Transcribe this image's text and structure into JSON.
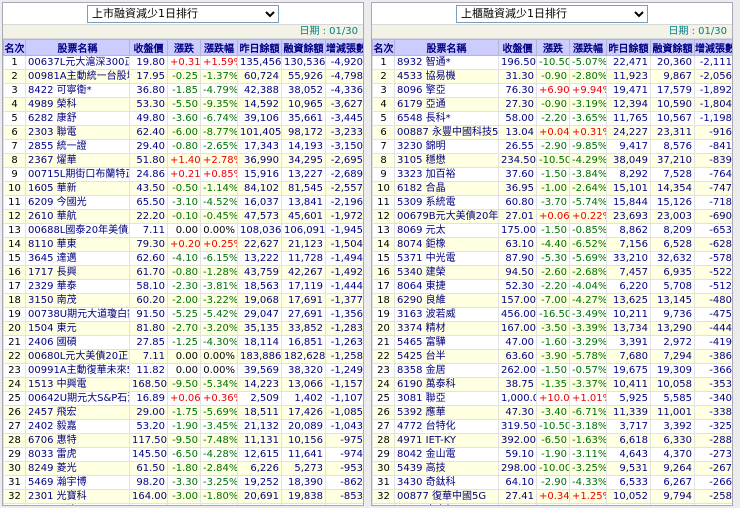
{
  "date_label": "日期 : 01/30",
  "colors": {
    "up": "#ee0000",
    "down": "#007000",
    "header_bg": "#ccccff",
    "header_fg": "#000080",
    "name": "#000080",
    "num": "#000080",
    "date": "#008080"
  },
  "tables": [
    {
      "title": "上市融資減少1日排行",
      "headers": [
        "名次",
        "股票名稱",
        "收盤價",
        "漲跌",
        "漲跌幅",
        "昨日餘額",
        "融資餘額",
        "增減張數"
      ],
      "rows": [
        [
          "1",
          "00637L元大滬深300正2",
          "19.80",
          "+0.31",
          "+1.59%",
          "135,456",
          "130,536",
          "-4,920"
        ],
        [
          "2",
          "00981A主動統一台股增長",
          "17.95",
          "-0.25",
          "-1.37%",
          "60,724",
          "55,926",
          "-4,798"
        ],
        [
          "3",
          "8422 可寧衛*",
          "36.80",
          "-1.85",
          "-4.79%",
          "42,388",
          "38,052",
          "-4,336"
        ],
        [
          "4",
          "4989 榮科",
          "53.30",
          "-5.50",
          "-9.35%",
          "14,592",
          "10,965",
          "-3,627"
        ],
        [
          "5",
          "6282 康舒",
          "49.80",
          "-3.60",
          "-6.74%",
          "39,106",
          "35,661",
          "-3,445"
        ],
        [
          "6",
          "2303 聯電",
          "62.40",
          "-6.00",
          "-8.77%",
          "101,405",
          "98,172",
          "-3,233"
        ],
        [
          "7",
          "2855 統一證",
          "29.40",
          "-0.80",
          "-2.65%",
          "17,343",
          "14,193",
          "-3,150"
        ],
        [
          "8",
          "2367 燿華",
          "51.80",
          "+1.40",
          "+2.78%",
          "36,990",
          "34,295",
          "-2,695"
        ],
        [
          "9",
          "00715L期街口布蘭特正2",
          "24.86",
          "+0.21",
          "+0.85%",
          "15,916",
          "13,227",
          "-2,689"
        ],
        [
          "10",
          "1605 華新",
          "43.50",
          "-0.50",
          "-1.14%",
          "84,102",
          "81,545",
          "-2,557"
        ],
        [
          "11",
          "6209 今國光",
          "65.50",
          "-3.10",
          "-4.52%",
          "16,037",
          "13,841",
          "-2,196"
        ],
        [
          "12",
          "2610 華航",
          "22.20",
          "-0.10",
          "-0.45%",
          "47,573",
          "45,601",
          "-1,972"
        ],
        [
          "13",
          "00688L國泰20年美債正2",
          "7.11",
          "0.00",
          "0.00%",
          "108,036",
          "106,091",
          "-1,945"
        ],
        [
          "14",
          "8110 華東",
          "79.30",
          "+0.20",
          "+0.25%",
          "22,627",
          "21,123",
          "-1,504"
        ],
        [
          "15",
          "3645 達邁",
          "62.60",
          "-4.10",
          "-6.15%",
          "13,222",
          "11,728",
          "-1,494"
        ],
        [
          "16",
          "1717 長興",
          "61.70",
          "-0.80",
          "-1.28%",
          "43,759",
          "42,267",
          "-1,492"
        ],
        [
          "17",
          "2329 華泰",
          "58.10",
          "-2.30",
          "-3.81%",
          "18,563",
          "17,119",
          "-1,444"
        ],
        [
          "18",
          "3150 南茂",
          "60.20",
          "-2.00",
          "-3.22%",
          "19,068",
          "17,691",
          "-1,377"
        ],
        [
          "19",
          "00738U期元大道瓊白銀",
          "91.50",
          "-5.25",
          "-5.42%",
          "29,047",
          "27,691",
          "-1,356"
        ],
        [
          "20",
          "1504 東元",
          "81.80",
          "-2.70",
          "-3.20%",
          "35,135",
          "33,852",
          "-1,283"
        ],
        [
          "21",
          "2406 國碩",
          "27.85",
          "-1.25",
          "-4.30%",
          "18,114",
          "16,851",
          "-1,263"
        ],
        [
          "22",
          "00680L元大美債20正2",
          "7.11",
          "0.00",
          "0.00%",
          "183,886",
          "182,628",
          "-1,258"
        ],
        [
          "23",
          "00991A主動復華未來50",
          "11.82",
          "0.00",
          "0.00%",
          "39,569",
          "38,320",
          "-1,249"
        ],
        [
          "24",
          "1513 中興電",
          "168.50",
          "-9.50",
          "-5.34%",
          "14,223",
          "13,066",
          "-1,157"
        ],
        [
          "25",
          "00642U期元大S&P石油",
          "16.89",
          "+0.06",
          "+0.36%",
          "2,509",
          "1,402",
          "-1,107"
        ],
        [
          "26",
          "2457 飛宏",
          "29.00",
          "-1.75",
          "-5.69%",
          "18,511",
          "17,426",
          "-1,085"
        ],
        [
          "27",
          "2402 毅嘉",
          "53.20",
          "-1.90",
          "-3.45%",
          "21,132",
          "20,089",
          "-1,043"
        ],
        [
          "28",
          "6706 惠特",
          "117.50",
          "-9.50",
          "-7.48%",
          "11,131",
          "10,156",
          "-975"
        ],
        [
          "29",
          "8033 雷虎",
          "145.50",
          "-6.50",
          "-4.28%",
          "12,615",
          "11,641",
          "-974"
        ],
        [
          "30",
          "8249 菱光",
          "61.50",
          "-1.80",
          "-2.84%",
          "6,226",
          "5,273",
          "-953"
        ],
        [
          "31",
          "5469 瀚宇博",
          "98.20",
          "-3.30",
          "-3.25%",
          "19,252",
          "18,390",
          "-862"
        ],
        [
          "32",
          "2301 光寶科",
          "164.00",
          "-3.00",
          "-1.80%",
          "20,691",
          "19,838",
          "-853"
        ],
        [
          "33",
          "3149 正達",
          "52.40",
          "-2.50",
          "-4.55%",
          "25,808",
          "24,956",
          "-852"
        ]
      ]
    },
    {
      "title": "上櫃融資減少1日排行",
      "headers": [
        "名次",
        "股票名稱",
        "收盤價",
        "漲跌",
        "漲跌幅",
        "昨日餘額",
        "融資餘額",
        "增減張數"
      ],
      "rows": [
        [
          "1",
          "8932 智通*",
          "196.50",
          "-10.50",
          "-5.07%",
          "22,471",
          "20,360",
          "-2,111"
        ],
        [
          "2",
          "4533 協易機",
          "31.30",
          "-0.90",
          "-2.80%",
          "11,923",
          "9,867",
          "-2,056"
        ],
        [
          "3",
          "8096 擎亞",
          "76.30",
          "+6.90",
          "+9.94%",
          "19,471",
          "17,579",
          "-1,892"
        ],
        [
          "4",
          "6179 亞通",
          "27.30",
          "-0.90",
          "-3.19%",
          "12,394",
          "10,590",
          "-1,804"
        ],
        [
          "5",
          "6548 長科*",
          "58.00",
          "-2.20",
          "-3.65%",
          "11,765",
          "10,567",
          "-1,198"
        ],
        [
          "6",
          "00887 永豐中國科技50大",
          "13.04",
          "+0.04",
          "+0.31%",
          "24,227",
          "23,311",
          "-916"
        ],
        [
          "7",
          "3230 錦明",
          "26.55",
          "-2.90",
          "-9.85%",
          "9,417",
          "8,576",
          "-841"
        ],
        [
          "8",
          "3105 穩懋",
          "234.50",
          "-10.50",
          "-4.29%",
          "38,049",
          "37,210",
          "-839"
        ],
        [
          "9",
          "3323 加百裕",
          "37.60",
          "-1.50",
          "-3.84%",
          "8,292",
          "7,528",
          "-764"
        ],
        [
          "10",
          "6182 合晶",
          "36.95",
          "-1.00",
          "-2.64%",
          "15,101",
          "14,354",
          "-747"
        ],
        [
          "11",
          "5309 系統電",
          "60.80",
          "-3.70",
          "-5.74%",
          "15,844",
          "15,126",
          "-718"
        ],
        [
          "12",
          "00679B元大美債20年",
          "27.01",
          "+0.06",
          "+0.22%",
          "23,693",
          "23,003",
          "-690"
        ],
        [
          "13",
          "8069 元太",
          "175.00",
          "-1.50",
          "-0.85%",
          "8,862",
          "8,209",
          "-653"
        ],
        [
          "14",
          "8074 鉅橡",
          "63.10",
          "-4.40",
          "-6.52%",
          "7,156",
          "6,528",
          "-628"
        ],
        [
          "15",
          "5371 中光電",
          "87.90",
          "-5.30",
          "-5.69%",
          "33,210",
          "32,632",
          "-578"
        ],
        [
          "16",
          "5340 建榮",
          "94.50",
          "-2.60",
          "-2.68%",
          "7,457",
          "6,935",
          "-522"
        ],
        [
          "17",
          "8064 東捷",
          "52.30",
          "-2.20",
          "-4.04%",
          "6,220",
          "5,708",
          "-512"
        ],
        [
          "18",
          "6290 良維",
          "157.00",
          "-7.00",
          "-4.27%",
          "13,625",
          "13,145",
          "-480"
        ],
        [
          "19",
          "3163 波若威",
          "456.00",
          "-16.50",
          "-3.49%",
          "10,211",
          "9,736",
          "-475"
        ],
        [
          "20",
          "3374 精材",
          "167.00",
          "-3.50",
          "-3.39%",
          "13,734",
          "13,290",
          "-444"
        ],
        [
          "21",
          "5465 富驊",
          "47.00",
          "-1.60",
          "-3.29%",
          "3,391",
          "2,972",
          "-419"
        ],
        [
          "22",
          "5425 台半",
          "63.60",
          "-3.90",
          "-5.78%",
          "7,680",
          "7,294",
          "-386"
        ],
        [
          "23",
          "8358 金居",
          "262.00",
          "-1.50",
          "-0.57%",
          "19,675",
          "19,309",
          "-366"
        ],
        [
          "24",
          "6190 萬泰科",
          "38.75",
          "-1.35",
          "-3.37%",
          "10,411",
          "10,058",
          "-353"
        ],
        [
          "25",
          "3081 聯亞",
          "1,000.00",
          "+10.00",
          "+1.01%",
          "5,925",
          "5,585",
          "-340"
        ],
        [
          "26",
          "5392 應華",
          "47.30",
          "-3.40",
          "-6.71%",
          "11,339",
          "11,001",
          "-338"
        ],
        [
          "27",
          "4772 台特化",
          "319.50",
          "-10.50",
          "-3.18%",
          "3,717",
          "3,392",
          "-325"
        ],
        [
          "28",
          "4971 IET-KY",
          "392.00",
          "-6.50",
          "-1.63%",
          "6,618",
          "6,330",
          "-288"
        ],
        [
          "29",
          "8042 金山電",
          "59.10",
          "-1.90",
          "-3.11%",
          "4,643",
          "4,370",
          "-273"
        ],
        [
          "30",
          "5439 高技",
          "298.00",
          "-10.00",
          "-3.25%",
          "9,531",
          "9,264",
          "-267"
        ],
        [
          "31",
          "3430 奇鈦科",
          "64.10",
          "-2.90",
          "-4.33%",
          "6,533",
          "6,267",
          "-266"
        ],
        [
          "32",
          "00877 復華中國5G",
          "27.41",
          "+0.34",
          "+1.25%",
          "10,052",
          "9,794",
          "-258"
        ],
        [
          "33",
          "6265 方土昶",
          "46.05",
          "-3.55",
          "-7.16%",
          "9,455",
          "9,213",
          "-242"
        ]
      ]
    }
  ]
}
